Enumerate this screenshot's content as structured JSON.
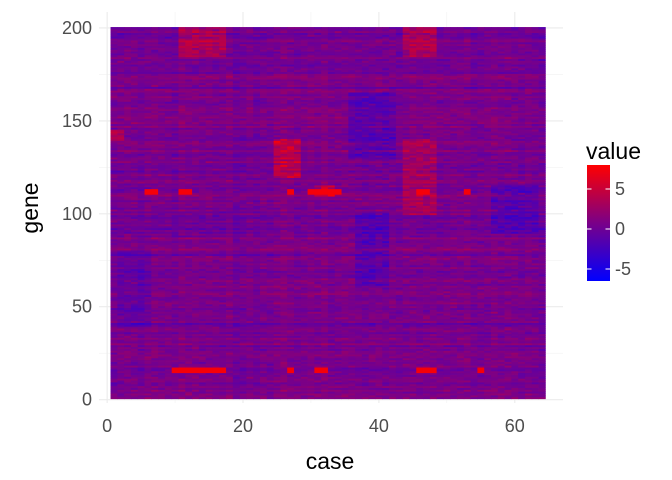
{
  "chart_data": {
    "type": "heatmap",
    "title": "",
    "xlabel": "case",
    "ylabel": "gene",
    "x_range": [
      1,
      64
    ],
    "y_range": [
      1,
      200
    ],
    "xlim": [
      -1.2,
      67.1
    ],
    "ylim": [
      -1.8,
      208.6
    ],
    "x_ticks": [
      0,
      20,
      40,
      60
    ],
    "y_ticks": [
      0,
      50,
      100,
      150,
      200
    ],
    "x_tick_labels": [
      "0",
      "20",
      "40",
      "60"
    ],
    "y_tick_labels": [
      "0",
      "50",
      "100",
      "150",
      "200"
    ],
    "grid": true,
    "legend": {
      "title": "value",
      "position": "right",
      "ticks": [
        -5,
        0,
        5
      ],
      "tick_labels": [
        "-5",
        "0",
        "5"
      ],
      "range": [
        -6.5,
        8
      ]
    },
    "color_scale": {
      "low": "#0000ff",
      "mid": "#7a0088",
      "high": "#ff0000"
    },
    "notable_high_rows": [
      {
        "gene": 112,
        "cases": [
          6,
          7,
          11,
          12,
          27,
          30,
          31,
          32,
          33,
          34,
          46,
          47,
          53
        ]
      },
      {
        "gene": 16,
        "cases": [
          10,
          11,
          12,
          13,
          14,
          15,
          16,
          17,
          27,
          31,
          32,
          46,
          47,
          48,
          55
        ]
      }
    ],
    "hot_blocks": [
      {
        "genes": [
          120,
          140
        ],
        "cases": [
          25,
          28
        ],
        "level": 5
      },
      {
        "genes": [
          185,
          200
        ],
        "cases": [
          11,
          17
        ],
        "level": 4
      },
      {
        "genes": [
          185,
          200
        ],
        "cases": [
          44,
          48
        ],
        "level": 4
      },
      {
        "genes": [
          140,
          145
        ],
        "cases": [
          1,
          2
        ],
        "level": 4
      },
      {
        "genes": [
          100,
          140
        ],
        "cases": [
          44,
          48
        ],
        "level": 3
      },
      {
        "genes": [
          110,
          115
        ],
        "cases": [
          31,
          33
        ],
        "level": 5
      }
    ],
    "cold_blocks": [
      {
        "genes": [
          130,
          165
        ],
        "cases": [
          36,
          42
        ],
        "level": -3
      },
      {
        "genes": [
          60,
          100
        ],
        "cases": [
          37,
          41
        ],
        "level": -3
      },
      {
        "genes": [
          90,
          115
        ],
        "cases": [
          57,
          63
        ],
        "level": -3
      },
      {
        "genes": [
          40,
          80
        ],
        "cases": [
          2,
          6
        ],
        "level": -2
      }
    ]
  }
}
